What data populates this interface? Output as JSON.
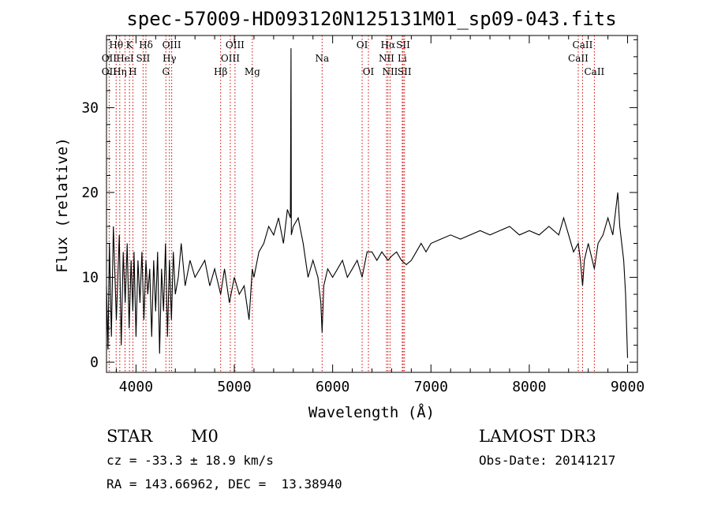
{
  "chart_data": {
    "type": "line",
    "title": "spec-57009-HD093120N125131M01_sp09-043.fits",
    "xlabel": "Wavelength (Å)",
    "ylabel": "Flux (relative)",
    "xlim": [
      3700,
      9100
    ],
    "ylim": [
      -1.2,
      38.5
    ],
    "xticks": [
      4000,
      5000,
      6000,
      7000,
      8000,
      9000
    ],
    "yticks": [
      0,
      10,
      20,
      30
    ],
    "grid": false,
    "series": [
      {
        "name": "flux",
        "x": [
          3700,
          3715,
          3730,
          3750,
          3770,
          3800,
          3830,
          3850,
          3870,
          3890,
          3910,
          3930,
          3950,
          3968,
          3980,
          4000,
          4020,
          4040,
          4060,
          4080,
          4101,
          4120,
          4140,
          4160,
          4180,
          4200,
          4220,
          4240,
          4260,
          4280,
          4300,
          4320,
          4340,
          4360,
          4380,
          4400,
          4430,
          4460,
          4500,
          4550,
          4600,
          4650,
          4700,
          4750,
          4800,
          4861,
          4900,
          4950,
          5000,
          5050,
          5100,
          5150,
          5183,
          5200,
          5250,
          5300,
          5350,
          5400,
          5450,
          5500,
          5540,
          5570,
          5577,
          5580,
          5600,
          5650,
          5700,
          5750,
          5800,
          5850,
          5880,
          5893,
          5910,
          5950,
          6000,
          6050,
          6100,
          6150,
          6200,
          6250,
          6300,
          6350,
          6400,
          6450,
          6500,
          6563,
          6600,
          6650,
          6700,
          6750,
          6800,
          6850,
          6900,
          6950,
          7000,
          7100,
          7200,
          7300,
          7400,
          7500,
          7600,
          7700,
          7800,
          7900,
          8000,
          8100,
          8200,
          8300,
          8350,
          8400,
          8450,
          8498,
          8520,
          8542,
          8560,
          8600,
          8662,
          8700,
          8750,
          8800,
          8850,
          8900,
          8920,
          8940,
          8960,
          8980,
          9000
        ],
        "values": [
          9,
          1.5,
          14,
          3,
          16,
          5,
          15,
          2,
          13,
          7,
          14,
          4,
          12,
          6,
          13,
          3,
          12,
          7,
          13,
          5,
          12,
          8,
          11,
          3,
          12,
          6,
          13,
          1,
          11,
          6,
          14,
          3,
          12,
          5,
          13,
          8,
          10,
          14,
          9,
          12,
          10,
          11,
          12,
          9,
          11,
          8,
          11,
          7,
          10,
          8,
          9,
          5,
          11,
          10,
          13,
          14,
          16,
          15,
          17,
          14,
          18,
          17,
          37,
          15,
          16,
          17,
          14,
          10,
          12,
          10,
          7,
          3.5,
          9,
          11,
          10,
          11,
          12,
          10,
          11,
          12,
          10,
          13,
          13,
          12,
          13,
          12,
          12.5,
          13,
          12,
          11.5,
          12,
          13,
          14,
          13,
          14,
          14.5,
          15,
          14.5,
          15,
          15.5,
          15,
          15.5,
          16,
          15,
          15.5,
          15,
          16,
          15,
          17,
          15,
          13,
          14,
          12,
          9,
          12,
          14,
          11,
          14,
          15,
          17,
          15,
          20,
          16,
          14,
          12,
          8,
          0.5
        ]
      }
    ],
    "spectral_lines": [
      {
        "label": "Hθ",
        "x": 3798,
        "row": 1
      },
      {
        "label": "OII",
        "x": 3727,
        "row": 2
      },
      {
        "label": "OII",
        "x": 3727,
        "row": 3
      },
      {
        "label": "HeI",
        "x": 3888,
        "row": 2
      },
      {
        "label": "Hη",
        "x": 3835,
        "row": 3
      },
      {
        "label": "K",
        "x": 3934,
        "row": 1
      },
      {
        "label": "H",
        "x": 3968,
        "row": 3
      },
      {
        "label": "Hδ",
        "x": 4101,
        "row": 1
      },
      {
        "label": "SII",
        "x": 4072,
        "row": 2
      },
      {
        "label": "OIII",
        "x": 4363,
        "row": 1
      },
      {
        "label": "Hγ",
        "x": 4340,
        "row": 2
      },
      {
        "label": "G",
        "x": 4304,
        "row": 3
      },
      {
        "label": "OIII",
        "x": 5007,
        "row": 1
      },
      {
        "label": "OIII",
        "x": 4959,
        "row": 2
      },
      {
        "label": "Hβ",
        "x": 4861,
        "row": 3
      },
      {
        "label": "Mg",
        "x": 5183,
        "row": 3
      },
      {
        "label": "Na",
        "x": 5893,
        "row": 2
      },
      {
        "label": "OI",
        "x": 6300,
        "row": 1
      },
      {
        "label": "OI",
        "x": 6364,
        "row": 3
      },
      {
        "label": "Hα",
        "x": 6563,
        "row": 1
      },
      {
        "label": "SII",
        "x": 6717,
        "row": 1
      },
      {
        "label": "NII",
        "x": 6548,
        "row": 2
      },
      {
        "label": "Li",
        "x": 6708,
        "row": 2
      },
      {
        "label": "NII",
        "x": 6584,
        "row": 3
      },
      {
        "label": "SII",
        "x": 6731,
        "row": 3
      },
      {
        "label": "CaII",
        "x": 8542,
        "row": 1
      },
      {
        "label": "CaII",
        "x": 8498,
        "row": 2
      },
      {
        "label": "CaII",
        "x": 8662,
        "row": 3
      }
    ]
  },
  "footer": {
    "object_class": "STAR",
    "subclass": "M0",
    "survey": "LAMOST DR3",
    "cz": "cz = -33.3 ± 18.9 km/s",
    "obs_date": "Obs-Date: 20141217",
    "coords": "RA = 143.66962, DEC =  13.38940"
  },
  "colors": {
    "spectrum": "#000000",
    "line_marker": "#cc0000"
  }
}
